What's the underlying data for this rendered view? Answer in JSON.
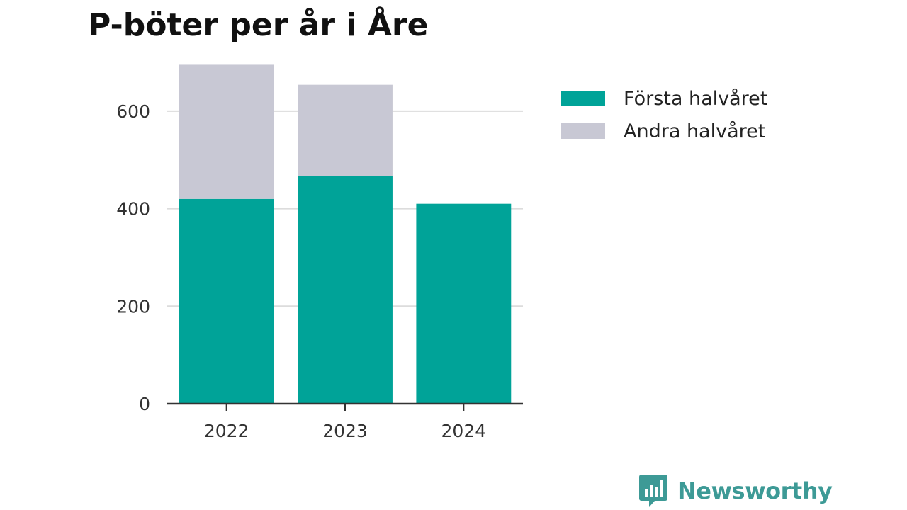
{
  "chart_data": {
    "type": "bar",
    "stacked": true,
    "title": "P-böter per år i Åre",
    "categories": [
      "2022",
      "2023",
      "2024"
    ],
    "series": [
      {
        "name": "Första halvåret",
        "color": "#00a398",
        "values": [
          420,
          467,
          410
        ]
      },
      {
        "name": "Andra halvåret",
        "color": "#c8c8d4",
        "values": [
          275,
          187,
          null
        ]
      }
    ],
    "xlabel": "",
    "ylabel": "",
    "ylim": [
      0,
      700
    ],
    "yticks": [
      0,
      200,
      400,
      600
    ],
    "yticks_labels": [
      "0",
      "200",
      "400",
      "600"
    ],
    "grid": true,
    "legend_position": "top-right"
  },
  "brand": {
    "name": "Newsworthy",
    "color": "#3d9a96",
    "icon": "bar-chart-speech-bubble-icon"
  }
}
